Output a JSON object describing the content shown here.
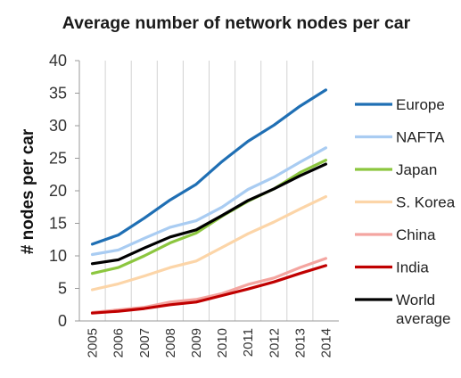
{
  "chart_data": {
    "type": "line",
    "title": "Average number of network nodes per car",
    "ylabel": "# nodes per car",
    "xlabel": "",
    "ylim": [
      0,
      40
    ],
    "yticks": [
      0,
      5,
      10,
      15,
      20,
      25,
      30,
      35,
      40
    ],
    "grid": "vertical",
    "legend": "right",
    "x": [
      "2005",
      "2006",
      "2007",
      "2008",
      "2009",
      "2010",
      "2011",
      "2012",
      "2013",
      "2014"
    ],
    "series": [
      {
        "name": "Europe",
        "color": "#1f6fb4",
        "values": [
          11.8,
          13.2,
          15.8,
          18.6,
          21.0,
          24.5,
          27.6,
          30.1,
          33.0,
          35.5
        ]
      },
      {
        "name": "NAFTA",
        "color": "#a9ccf2",
        "values": [
          10.2,
          10.9,
          12.7,
          14.4,
          15.4,
          17.5,
          20.2,
          22.1,
          24.4,
          26.6
        ]
      },
      {
        "name": "Japan",
        "color": "#8cc63f",
        "values": [
          7.3,
          8.2,
          10.0,
          12.0,
          13.5,
          16.1,
          18.4,
          20.3,
          22.8,
          24.7
        ]
      },
      {
        "name": "S. Korea",
        "color": "#fcd5a8",
        "values": [
          4.8,
          5.7,
          6.9,
          8.2,
          9.2,
          11.3,
          13.4,
          15.2,
          17.2,
          19.1
        ]
      },
      {
        "name": "China",
        "color": "#f4a5a0",
        "values": [
          1.3,
          1.7,
          2.1,
          2.9,
          3.3,
          4.2,
          5.6,
          6.6,
          8.2,
          9.6
        ]
      },
      {
        "name": "India",
        "color": "#c00000",
        "values": [
          1.2,
          1.5,
          1.9,
          2.5,
          2.9,
          3.9,
          4.9,
          6.0,
          7.3,
          8.5
        ]
      },
      {
        "name": "World average",
        "label_lines": [
          "World",
          "average"
        ],
        "color": "#000000",
        "values": [
          8.8,
          9.4,
          11.2,
          12.9,
          14.0,
          16.2,
          18.5,
          20.3,
          22.3,
          24.1
        ]
      }
    ]
  }
}
